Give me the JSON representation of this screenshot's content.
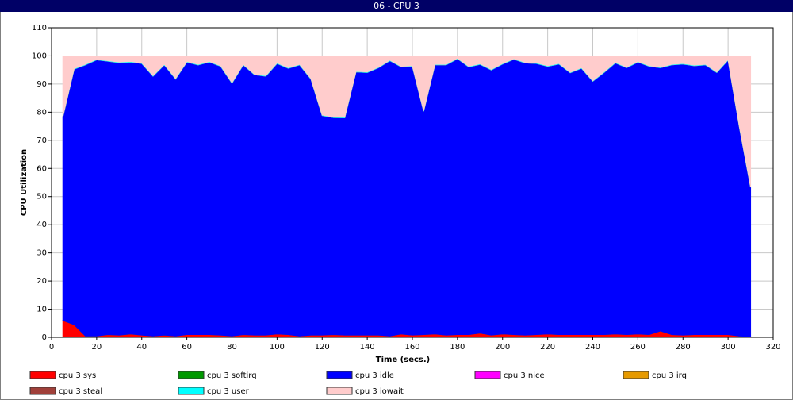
{
  "chart_data": {
    "type": "stacked_area",
    "title": "06 - CPU 3",
    "x_label": "Time (secs.)",
    "y_label": "CPU Utilization",
    "x": [
      5,
      10,
      15,
      20,
      25,
      30,
      35,
      40,
      45,
      50,
      55,
      60,
      65,
      70,
      75,
      80,
      85,
      90,
      95,
      100,
      105,
      110,
      115,
      120,
      125,
      130,
      135,
      140,
      145,
      150,
      155,
      160,
      165,
      170,
      175,
      180,
      185,
      190,
      195,
      200,
      205,
      210,
      215,
      220,
      225,
      230,
      235,
      240,
      245,
      250,
      255,
      260,
      265,
      270,
      275,
      280,
      285,
      290,
      295,
      300,
      305,
      310
    ],
    "series": [
      {
        "name": "cpu 3 sys",
        "color": "#ff0000",
        "values": [
          6,
          4.5,
          0.5,
          0.5,
          1,
          0.8,
          1.2,
          0.8,
          0.5,
          0.8,
          0.5,
          1,
          1,
          1,
          0.8,
          0.5,
          1,
          0.8,
          0.8,
          1.2,
          1,
          0.5,
          0.8,
          0.8,
          1,
          0.8,
          0.8,
          0.8,
          0.8,
          0.5,
          1.2,
          0.8,
          1,
          1.2,
          0.8,
          1,
          1,
          1.5,
          0.8,
          1.2,
          1,
          0.8,
          1,
          1.2,
          1,
          1,
          1,
          1,
          1,
          1.2,
          1,
          1.2,
          1,
          2.3,
          1,
          0.8,
          1,
          1,
          1,
          1,
          0.5,
          0.3
        ]
      },
      {
        "name": "cpu 3 softirq",
        "color": "#009900",
        "values": [
          0,
          0,
          0,
          0,
          0,
          0,
          0,
          0,
          0,
          0,
          0,
          0,
          0,
          0,
          0,
          0,
          0,
          0,
          0,
          0,
          0,
          0,
          0,
          0,
          0,
          0,
          0,
          0,
          0,
          0,
          0,
          0,
          0,
          0,
          0,
          0,
          0,
          0,
          0,
          0,
          0,
          0,
          0,
          0,
          0,
          0,
          0,
          0,
          0,
          0,
          0,
          0,
          0,
          0,
          0,
          0,
          0,
          0,
          0,
          0,
          0,
          0
        ]
      },
      {
        "name": "cpu 3 idle",
        "color": "#0000ff",
        "values": [
          72.3,
          90.8,
          96.3,
          98.1,
          97.1,
          96.8,
          96.6,
          96.5,
          92.3,
          96,
          91.3,
          96.8,
          95.8,
          96.8,
          95.5,
          89.8,
          95.8,
          92.5,
          92,
          96.1,
          94.6,
          96.3,
          91,
          78,
          77.1,
          77.2,
          93.5,
          93.3,
          95,
          97.8,
          94.9,
          95.5,
          79.3,
          95.6,
          96,
          98,
          95.1,
          95.5,
          94.2,
          95.9,
          97.8,
          96.7,
          96.3,
          95.1,
          96.1,
          93,
          94.6,
          90,
          93.1,
          96.3,
          94.8,
          96.6,
          95.3,
          93.5,
          95.8,
          96.3,
          95.5,
          95.8,
          93.1,
          97.5,
          74.3,
          53
        ]
      },
      {
        "name": "cpu 3 nice",
        "color": "#ff00ff",
        "values": [
          0,
          0,
          0,
          0,
          0,
          0,
          0,
          0,
          0,
          0,
          0,
          0,
          0,
          0,
          0,
          0,
          0,
          0,
          0,
          0,
          0,
          0,
          0,
          0,
          0,
          0,
          0,
          0,
          0,
          0,
          0,
          0,
          0,
          0,
          0,
          0,
          0,
          0,
          0,
          0,
          0,
          0,
          0,
          0,
          0,
          0,
          0,
          0,
          0,
          0,
          0,
          0,
          0,
          0,
          0,
          0,
          0,
          0,
          0,
          0,
          0,
          0
        ]
      },
      {
        "name": "cpu 3 irq",
        "color": "#e69a00",
        "values": [
          0,
          0,
          0,
          0,
          0,
          0,
          0,
          0,
          0,
          0,
          0,
          0,
          0,
          0,
          0,
          0,
          0,
          0,
          0,
          0,
          0,
          0,
          0,
          0,
          0,
          0,
          0,
          0,
          0,
          0,
          0,
          0,
          0,
          0,
          0,
          0,
          0,
          0,
          0,
          0,
          0,
          0,
          0,
          0,
          0,
          0,
          0,
          0,
          0,
          0,
          0,
          0,
          0,
          0,
          0,
          0,
          0,
          0,
          0,
          0,
          0,
          0
        ]
      },
      {
        "name": "cpu 3 steal",
        "color": "#a0403a",
        "values": [
          0,
          0,
          0,
          0,
          0,
          0,
          0,
          0,
          0,
          0,
          0,
          0,
          0,
          0,
          0,
          0,
          0,
          0,
          0,
          0,
          0,
          0,
          0,
          0,
          0,
          0,
          0,
          0,
          0,
          0,
          0,
          0,
          0,
          0,
          0,
          0,
          0,
          0,
          0,
          0,
          0,
          0,
          0,
          0,
          0,
          0,
          0,
          0,
          0,
          0,
          0,
          0,
          0,
          0,
          0,
          0,
          0,
          0,
          0,
          0,
          0,
          0
        ]
      },
      {
        "name": "cpu 3 user",
        "color": "#00ffff",
        "values": [
          0.2,
          0.2,
          0.2,
          0.2,
          0.2,
          0.2,
          0.2,
          0.2,
          0.2,
          0.2,
          0.2,
          0.2,
          0.2,
          0.2,
          0.2,
          0.2,
          0.2,
          0.2,
          0.2,
          0.2,
          0.2,
          0.2,
          0.2,
          0.2,
          0.2,
          0.2,
          0.2,
          0.2,
          0.2,
          0.2,
          0.2,
          0.2,
          0.2,
          0.2,
          0.2,
          0.2,
          0.2,
          0.2,
          0.2,
          0.2,
          0.2,
          0.2,
          0.2,
          0.2,
          0.2,
          0.2,
          0.2,
          0.2,
          0.2,
          0.2,
          0.2,
          0.2,
          0.2,
          0.2,
          0.2,
          0.2,
          0.2,
          0.2,
          0.2,
          0.2,
          0.2,
          0.2
        ]
      },
      {
        "name": "cpu 3 iowait",
        "color": "#ffcccc",
        "values": [
          21.5,
          4.5,
          3,
          1.2,
          1.7,
          2.2,
          2,
          2.5,
          7,
          3,
          8,
          2,
          3,
          2,
          3.5,
          9.5,
          3,
          6.5,
          7,
          2.5,
          4.2,
          3,
          8,
          21,
          21.7,
          21.8,
          5.5,
          5.7,
          4,
          1.5,
          3.7,
          3.5,
          19.5,
          3,
          3,
          0.8,
          3.7,
          2.8,
          4.8,
          2.7,
          1,
          2.3,
          2.5,
          3.5,
          2.7,
          5.8,
          4.2,
          8.8,
          5.7,
          2.3,
          4,
          2,
          3.5,
          4,
          3,
          2.7,
          3.3,
          3,
          5.7,
          1.3,
          25,
          46.5
        ]
      }
    ],
    "xlim": [
      0,
      320
    ],
    "xticks": [
      0,
      20,
      40,
      60,
      80,
      100,
      120,
      140,
      160,
      180,
      200,
      220,
      240,
      260,
      280,
      300,
      320
    ],
    "ylim": [
      0,
      110
    ],
    "yticks": [
      0,
      10,
      20,
      30,
      40,
      50,
      60,
      70,
      80,
      90,
      100,
      110
    ],
    "grid": true
  }
}
